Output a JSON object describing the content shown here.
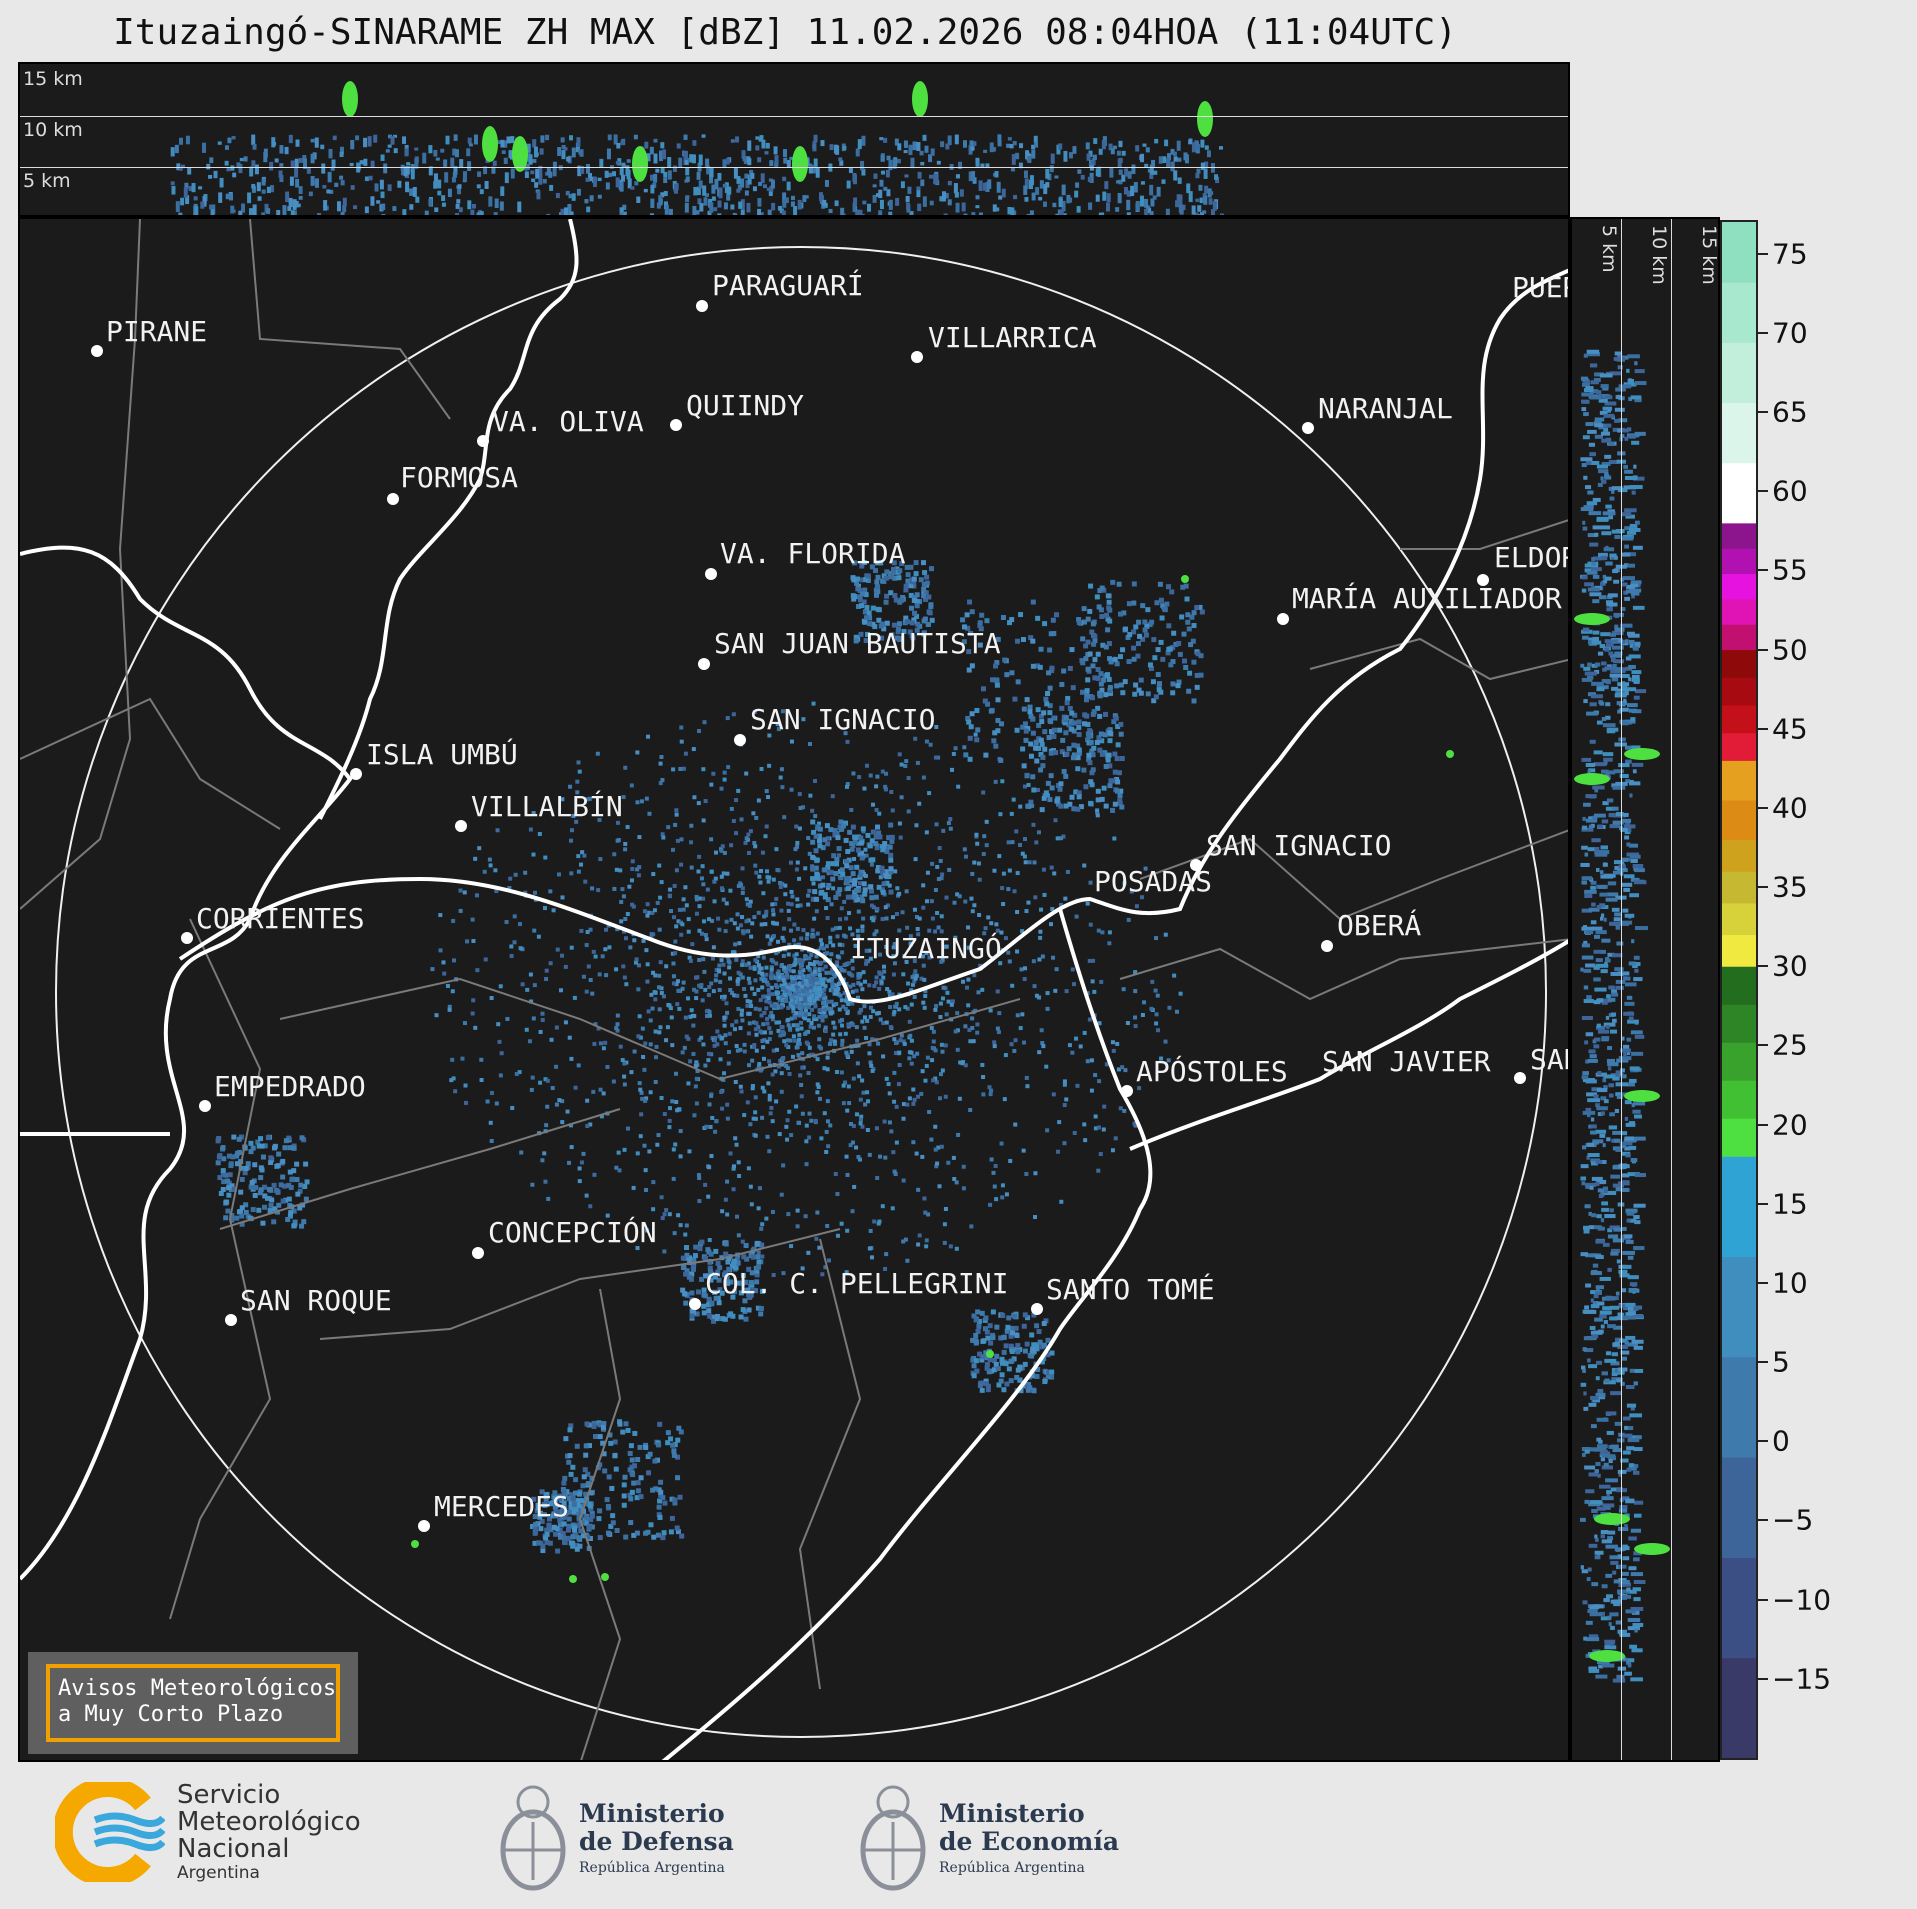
{
  "title": "Ituzaingó-SINARAME ZH MAX [dBZ] 11.02.2026 08:04HOA (11:04UTC)",
  "top_panel": {
    "height_labels": [
      "15 km",
      "10 km",
      "5 km"
    ]
  },
  "side_panel": {
    "height_labels": [
      "5 km",
      "10 km",
      "15 km"
    ]
  },
  "colorbar": {
    "unit": "dBZ",
    "min": -20,
    "max": 77,
    "tick_labels": [
      "75",
      "70",
      "65",
      "60",
      "55",
      "50",
      "45",
      "40",
      "35",
      "30",
      "25",
      "20",
      "15",
      "10",
      "5",
      "0",
      "−5",
      "−10",
      "−15"
    ],
    "tick_values": [
      75,
      70,
      65,
      60,
      55,
      50,
      45,
      40,
      35,
      30,
      25,
      20,
      15,
      10,
      5,
      0,
      -5,
      -10,
      -15
    ],
    "bands": [
      {
        "from": -20,
        "to": 18,
        "colors": [
          "#3a3a68",
          "#3b4f85",
          "#3e6599",
          "#3f7aad",
          "#3f8ebd",
          "#2fa3d4"
        ]
      },
      {
        "from": 18,
        "to": 30,
        "colors": [
          "#4ee040",
          "#42c034",
          "#38a22c",
          "#2d8526",
          "#236d1f"
        ]
      },
      {
        "from": 30,
        "to": 38,
        "colors": [
          "#f0ea40",
          "#d7d23a",
          "#c6b830",
          "#cfa21e"
        ]
      },
      {
        "from": 38,
        "to": 43,
        "colors": [
          "#dc8c14",
          "#e5a020"
        ]
      },
      {
        "from": 43,
        "to": 50,
        "colors": [
          "#e21c36",
          "#c41018",
          "#a80a12",
          "#8e0a0a"
        ]
      },
      {
        "from": 50,
        "to": 58,
        "colors": [
          "#c21070",
          "#e014b4",
          "#e612e0",
          "#b011b0",
          "#8c148c"
        ]
      },
      {
        "from": 58,
        "to": 77,
        "colors": [
          "#ffffff",
          "#dcf5ea",
          "#c2efdc",
          "#a7e8cf",
          "#8ee0c0"
        ]
      }
    ]
  },
  "cities": [
    {
      "name": "PIRANE"
    },
    {
      "name": "PARAGUARÍ"
    },
    {
      "name": "VILLARRICA"
    },
    {
      "name": "QUIINDY"
    },
    {
      "name": "VA. OLIVA"
    },
    {
      "name": "NARANJAL"
    },
    {
      "name": "FORMOSA"
    },
    {
      "name": "VA. FLORIDA"
    },
    {
      "name": "ELDOR"
    },
    {
      "name": "MARÍA AUXILIADOR"
    },
    {
      "name": "SAN JUAN BAUTISTA"
    },
    {
      "name": "SAN IGNACIO"
    },
    {
      "name": "ISLA UMBÚ"
    },
    {
      "name": "VILLALBÍN"
    },
    {
      "name": "SAN IGNACIO"
    },
    {
      "name": "POSADAS"
    },
    {
      "name": "CORRIENTES"
    },
    {
      "name": "ITUZAINGÓ"
    },
    {
      "name": "OBERÁ"
    },
    {
      "name": "EMPEDRADO"
    },
    {
      "name": "APÓSTOLES"
    },
    {
      "name": "SAN JAVIER"
    },
    {
      "name": "SAN"
    },
    {
      "name": "CONCEPCIÓN"
    },
    {
      "name": "COL. C. PELLEGRINI"
    },
    {
      "name": "SANTO TOMÉ"
    },
    {
      "name": "SAN ROQUE"
    },
    {
      "name": "MERCEDES"
    },
    {
      "name": "PUER"
    }
  ],
  "warning_box": {
    "line1": "Avisos Meteorológicos",
    "line2": "a Muy Corto Plazo"
  },
  "logos": {
    "smn": {
      "line1": "Servicio",
      "line2": "Meteorológico",
      "line3": "Nacional",
      "line4": "Argentina"
    },
    "defensa": {
      "line1": "Ministerio",
      "line2": "de Defensa",
      "line3": "República Argentina"
    },
    "economia": {
      "line1": "Ministerio",
      "line2": "de Economía",
      "line3": "República Argentina"
    }
  },
  "colors": {
    "background": "#1b1b1b",
    "rivers": "#ffffff",
    "borders": "#7a7a7a",
    "warning_border": "#f0a000",
    "smn_orange": "#f5a800",
    "smn_blue": "#3aa7dd"
  }
}
